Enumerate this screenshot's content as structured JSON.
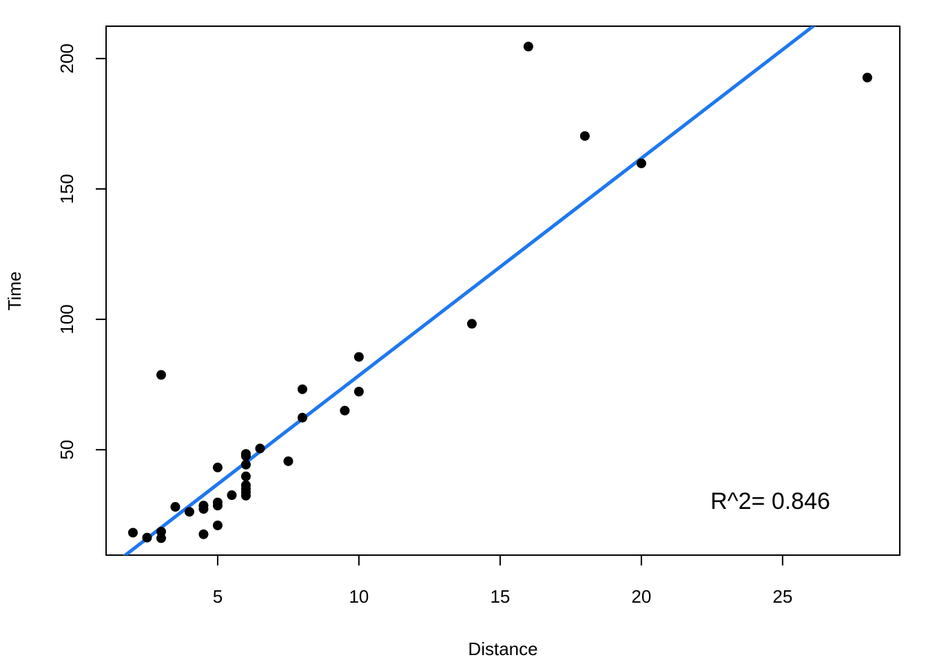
{
  "chart_data": {
    "type": "scatter",
    "title": "",
    "xlabel": "Distance",
    "ylabel": "Time",
    "xlim": [
      1.05,
      29.15
    ],
    "ylim": [
      9.6,
      212.4
    ],
    "grid": false,
    "x_ticks": [
      5,
      10,
      15,
      20,
      25
    ],
    "y_ticks": [
      50,
      100,
      150,
      200
    ],
    "series": [
      {
        "points": [
          [
            2.0,
            18.2
          ],
          [
            2.5,
            16.3
          ],
          [
            3.0,
            18.6
          ],
          [
            3.0,
            16.1
          ],
          [
            3.0,
            78.7
          ],
          [
            3.5,
            28.1
          ],
          [
            4.0,
            26.2
          ],
          [
            4.5,
            28.6
          ],
          [
            4.5,
            27.3
          ],
          [
            4.5,
            17.6
          ],
          [
            5.0,
            29.8
          ],
          [
            5.0,
            28.6
          ],
          [
            5.0,
            43.2
          ],
          [
            5.0,
            21.0
          ],
          [
            5.5,
            32.6
          ],
          [
            6.0,
            48.4
          ],
          [
            6.0,
            47.6
          ],
          [
            6.0,
            44.3
          ],
          [
            6.0,
            39.8
          ],
          [
            6.0,
            36.4
          ],
          [
            6.0,
            35.0
          ],
          [
            6.0,
            33.7
          ],
          [
            6.0,
            32.4
          ],
          [
            6.5,
            50.5
          ],
          [
            7.5,
            45.6
          ],
          [
            8.0,
            73.2
          ],
          [
            8.0,
            62.3
          ],
          [
            9.5,
            65.0
          ],
          [
            10.0,
            85.6
          ],
          [
            10.0,
            72.3
          ],
          [
            14.0,
            98.3
          ],
          [
            16.0,
            204.6
          ],
          [
            18.0,
            170.3
          ],
          [
            20.0,
            159.8
          ],
          [
            28.0,
            192.7
          ]
        ]
      }
    ],
    "regression_line": {
      "intercept": -4.84,
      "slope": 8.33,
      "color": "#1E78F0"
    },
    "annotation": "R^2= 0.846",
    "point_color": "#000000"
  }
}
